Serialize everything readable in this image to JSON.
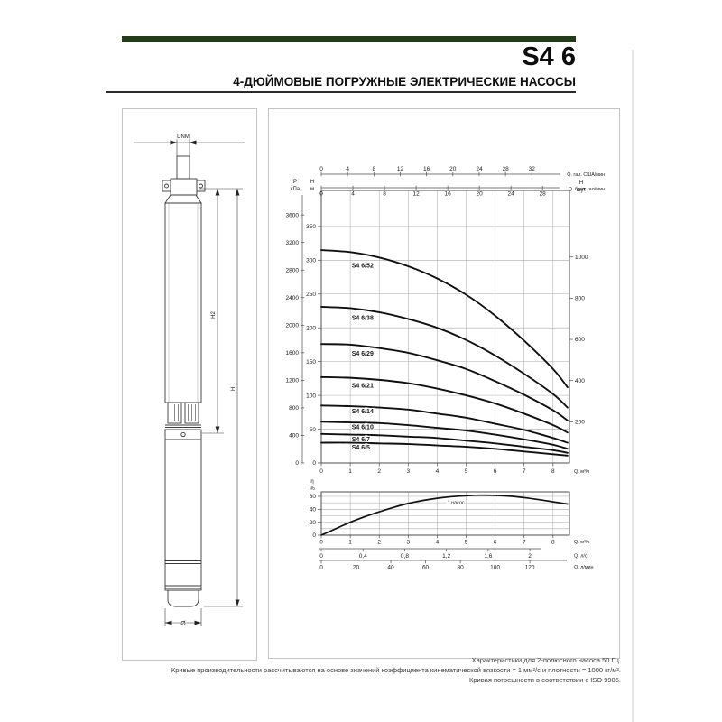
{
  "page": {
    "title": "S4 6",
    "subtitle": "4-ДЮЙМОВЫЕ ПОГРУЖНЫЕ ЭЛЕКТРИЧЕСКИЕ НАСОСЫ",
    "accent_color": "#213c16"
  },
  "drawing": {
    "dnm": "DNM",
    "h2": "H2",
    "h": "H",
    "diameter": "Ø"
  },
  "chart_data": {
    "main_chart": {
      "type": "line",
      "xlabel": "Q. м³/ч",
      "x_ticks": [
        0,
        1,
        2,
        3,
        4,
        5,
        6,
        7,
        8
      ],
      "x_max": 8.6,
      "top_axes": [
        {
          "label": "Q. гал. США/мин",
          "unit_to_m3h": 0.2271,
          "ticks": [
            0,
            4,
            8,
            12,
            16,
            20,
            24,
            28,
            32
          ]
        },
        {
          "label": "Q. брит. гал/мин",
          "unit_to_m3h": 0.2728,
          "ticks": [
            0,
            4,
            8,
            12,
            16,
            20,
            24,
            28
          ]
        }
      ],
      "left_axis_outer": {
        "label_top": "P",
        "label_bottom": "кПа",
        "kpa_per_m": 9.81,
        "ticks": [
          0,
          400,
          800,
          1200,
          1600,
          2000,
          2400,
          2800,
          3200,
          3600
        ]
      },
      "left_axis_inner": {
        "label_top": "H",
        "label_bottom": "м",
        "ticks": [
          0,
          50,
          100,
          150,
          200,
          250,
          300,
          350
        ]
      },
      "right_axis": {
        "label_top": "H",
        "label_bottom": "фут",
        "m_per_ft": 0.3048,
        "ticks": [
          200,
          400,
          600,
          800,
          1000
        ]
      },
      "series": [
        {
          "name": "S4 6/52",
          "label_q": 1.05,
          "label_dy": 17,
          "points": [
            [
              0,
              315
            ],
            [
              1,
              312
            ],
            [
              2,
              304
            ],
            [
              3,
              291
            ],
            [
              4,
              273
            ],
            [
              5,
              249
            ],
            [
              6,
              218
            ],
            [
              7,
              181
            ],
            [
              8,
              139
            ],
            [
              8.5,
              112
            ]
          ]
        },
        {
          "name": "S4 6/38",
          "label_q": 1.05,
          "label_dy": 13,
          "points": [
            [
              0,
              231
            ],
            [
              1,
              229
            ],
            [
              2,
              223
            ],
            [
              3,
              213
            ],
            [
              4,
              200
            ],
            [
              5,
              182
            ],
            [
              6,
              159
            ],
            [
              7,
              132
            ],
            [
              8,
              102
            ],
            [
              8.5,
              82
            ]
          ]
        },
        {
          "name": "S4 6/29",
          "label_q": 1.05,
          "label_dy": 12,
          "points": [
            [
              0,
              176
            ],
            [
              1,
              175
            ],
            [
              2,
              170
            ],
            [
              3,
              163
            ],
            [
              4,
              152
            ],
            [
              5,
              139
            ],
            [
              6,
              121
            ],
            [
              7,
              101
            ],
            [
              8,
              78
            ],
            [
              8.5,
              63
            ]
          ]
        },
        {
          "name": "S4 6/21",
          "label_q": 1.05,
          "label_dy": 11,
          "points": [
            [
              0,
              127
            ],
            [
              1,
              126
            ],
            [
              2,
              123
            ],
            [
              3,
              118
            ],
            [
              4,
              110
            ],
            [
              5,
              100
            ],
            [
              6,
              88
            ],
            [
              7,
              73
            ],
            [
              8,
              56
            ],
            [
              8.5,
              45
            ]
          ]
        },
        {
          "name": "S4 6/14",
          "label_q": 1.05,
          "label_dy": 8,
          "points": [
            [
              0,
              85
            ],
            [
              1,
              84
            ],
            [
              2,
              82
            ],
            [
              3,
              79
            ],
            [
              4,
              73
            ],
            [
              5,
              67
            ],
            [
              6,
              58
            ],
            [
              7,
              49
            ],
            [
              8,
              37
            ],
            [
              8.5,
              30
            ]
          ]
        },
        {
          "name": "S4 6/10",
          "label_q": 1.05,
          "label_dy": 7.5,
          "points": [
            [
              0,
              61
            ],
            [
              1,
              60
            ],
            [
              2,
              59
            ],
            [
              3,
              56
            ],
            [
              4,
              52
            ],
            [
              5,
              48
            ],
            [
              6,
              42
            ],
            [
              7,
              35
            ],
            [
              8,
              27
            ],
            [
              8.5,
              21
            ]
          ]
        },
        {
          "name": "S4 6/7",
          "label_q": 1.05,
          "label_dy": 7.5,
          "points": [
            [
              0,
              43
            ],
            [
              1,
              42
            ],
            [
              2,
              41
            ],
            [
              3,
              39
            ],
            [
              4,
              37
            ],
            [
              5,
              33
            ],
            [
              6,
              29
            ],
            [
              7,
              24
            ],
            [
              8,
              19
            ],
            [
              8.5,
              15
            ]
          ]
        },
        {
          "name": "S4 6/5",
          "label_q": 1.05,
          "label_dy": 7.5,
          "points": [
            [
              0,
              30
            ],
            [
              1,
              30
            ],
            [
              2,
              29
            ],
            [
              3,
              28
            ],
            [
              4,
              26
            ],
            [
              5,
              24
            ],
            [
              6,
              21
            ],
            [
              7,
              17
            ],
            [
              8,
              13
            ],
            [
              8.5,
              11
            ]
          ]
        }
      ]
    },
    "efficiency_chart": {
      "type": "line",
      "ylabel_top": "η",
      "ylabel_bottom": "%",
      "y_ticks": [
        0,
        20,
        40,
        60
      ],
      "curve_label": "1 насос",
      "points": [
        [
          0,
          0
        ],
        [
          0.5,
          10
        ],
        [
          1,
          20
        ],
        [
          1.5,
          28.5
        ],
        [
          2,
          36
        ],
        [
          2.5,
          43
        ],
        [
          3,
          49
        ],
        [
          3.5,
          53.5
        ],
        [
          4,
          57
        ],
        [
          4.5,
          59.5
        ],
        [
          5,
          61
        ],
        [
          5.5,
          61.8
        ],
        [
          6,
          61.5
        ],
        [
          6.5,
          60.3
        ],
        [
          7,
          58
        ],
        [
          7.5,
          55
        ],
        [
          8,
          51.5
        ],
        [
          8.5,
          48
        ]
      ],
      "x_axes": [
        {
          "label": "Q. м³/ч",
          "unit_to_m3h": 1,
          "ticks": [
            0,
            1,
            2,
            3,
            4,
            5,
            6,
            7,
            8
          ]
        },
        {
          "label": "Q. л/с",
          "unit_to_m3h": 3.6,
          "ticks": [
            0,
            0.4,
            0.8,
            1.2,
            1.6,
            2
          ],
          "tick_labels": [
            "0",
            "0,4",
            "0,8",
            "1,2",
            "1,6",
            "2"
          ]
        },
        {
          "label": "Q. л/мин",
          "unit_to_m3h": 0.06,
          "ticks": [
            0,
            20,
            40,
            60,
            80,
            100,
            120
          ]
        }
      ]
    }
  },
  "footer": {
    "lines": [
      "Характеристики для 2-полюсного насоса 50 Гц.",
      "Кривые производительности рассчитываются на основе значений коэффициента кинематической вязкости = 1 мм²/с и плотности = 1000 кг/м³.",
      "Кривая погрешности в соответствии с ISO 9906."
    ]
  }
}
